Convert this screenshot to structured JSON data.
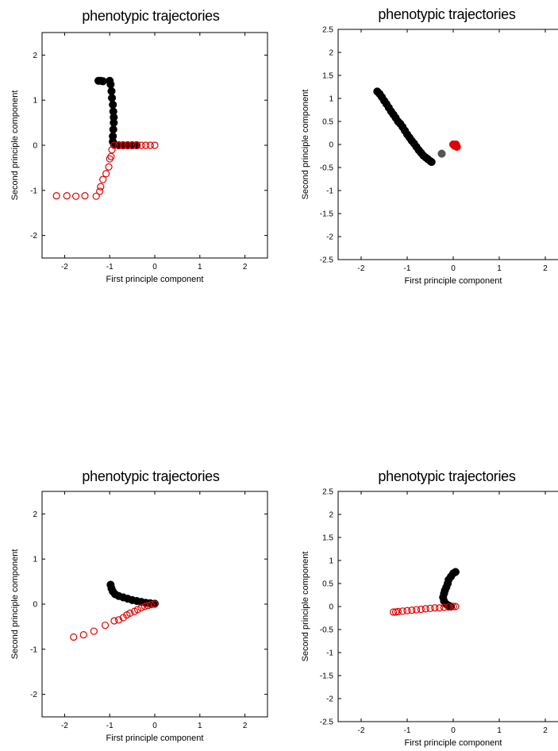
{
  "chart_data": [
    {
      "type": "scatter",
      "title": "phenotypic trajectories",
      "xlabel": "First principle component",
      "ylabel": "Second principle component",
      "xlim": [
        -2.5,
        2.5
      ],
      "ylim": [
        -2.5,
        2.5
      ],
      "xticks": [
        -2,
        -1,
        0,
        1,
        2
      ],
      "yticks": [
        -2,
        -1,
        0,
        1,
        2
      ],
      "ytick_labels": [
        "-2",
        "-1",
        "0",
        "1",
        "2"
      ],
      "series": [
        {
          "marker": "filled",
          "color": "#000000",
          "points": [
            [
              -1.25,
              1.43
            ],
            [
              -1.2,
              1.43
            ],
            [
              -1.15,
              1.42
            ],
            [
              -1.0,
              1.43
            ],
            [
              -0.98,
              1.35
            ],
            [
              -0.96,
              1.2
            ],
            [
              -0.95,
              1.05
            ],
            [
              -0.93,
              0.9
            ],
            [
              -0.92,
              0.75
            ],
            [
              -0.91,
              0.62
            ],
            [
              -0.91,
              0.5
            ],
            [
              -0.92,
              0.35
            ],
            [
              -0.93,
              0.2
            ],
            [
              -0.93,
              0.08
            ],
            [
              -0.9,
              0.01
            ],
            [
              -0.8,
              0.0
            ],
            [
              -0.7,
              0.0
            ],
            [
              -0.6,
              0.0
            ],
            [
              -0.5,
              0.0
            ],
            [
              -0.4,
              0.0
            ]
          ]
        },
        {
          "marker": "open",
          "color": "#e00000",
          "points": [
            [
              -2.18,
              -1.12
            ],
            [
              -1.95,
              -1.12
            ],
            [
              -1.75,
              -1.13
            ],
            [
              -1.55,
              -1.12
            ],
            [
              -1.3,
              -1.13
            ],
            [
              -1.22,
              -1.02
            ],
            [
              -1.2,
              -0.92
            ],
            [
              -1.15,
              -0.76
            ],
            [
              -1.08,
              -0.63
            ],
            [
              -1.02,
              -0.48
            ],
            [
              -1.0,
              -0.3
            ],
            [
              -0.97,
              -0.25
            ],
            [
              -0.95,
              -0.1
            ],
            [
              -0.9,
              0.0
            ],
            [
              -0.8,
              0.0
            ],
            [
              -0.7,
              0.0
            ],
            [
              -0.6,
              0.0
            ],
            [
              -0.5,
              0.0
            ],
            [
              -0.4,
              0.0
            ],
            [
              -0.3,
              0.0
            ],
            [
              -0.2,
              0.0
            ],
            [
              -0.1,
              0.0
            ],
            [
              0.0,
              0.0
            ]
          ]
        }
      ]
    },
    {
      "type": "scatter",
      "title": "phenotypic trajectories",
      "xlabel": "First principle component",
      "ylabel": "Second principle component",
      "xlim": [
        -2.5,
        2.5
      ],
      "ylim": [
        -2.5,
        2.5
      ],
      "xticks": [
        -2,
        -1,
        0,
        1,
        2
      ],
      "yticks": [
        -2.5,
        -2,
        -1.5,
        -1,
        -0.5,
        0,
        0.5,
        1,
        1.5,
        2,
        2.5
      ],
      "ytick_labels": [
        "-2.5",
        "-2",
        "-1.5",
        "-1",
        "-0.5",
        "0",
        "0.5",
        "1",
        "1.5",
        "2",
        "2.5"
      ],
      "series": [
        {
          "marker": "filled",
          "color": "#000000",
          "points": [
            [
              -1.65,
              1.15
            ],
            [
              -1.6,
              1.1
            ],
            [
              -1.55,
              1.03
            ],
            [
              -1.5,
              0.95
            ],
            [
              -1.45,
              0.88
            ],
            [
              -1.4,
              0.8
            ],
            [
              -1.35,
              0.72
            ],
            [
              -1.3,
              0.65
            ],
            [
              -1.25,
              0.58
            ],
            [
              -1.2,
              0.5
            ],
            [
              -1.15,
              0.45
            ],
            [
              -1.1,
              0.38
            ],
            [
              -1.05,
              0.3
            ],
            [
              -1.0,
              0.22
            ],
            [
              -0.95,
              0.15
            ],
            [
              -0.9,
              0.08
            ],
            [
              -0.85,
              0.02
            ],
            [
              -0.8,
              -0.05
            ],
            [
              -0.75,
              -0.12
            ],
            [
              -0.7,
              -0.18
            ],
            [
              -0.65,
              -0.24
            ],
            [
              -0.6,
              -0.28
            ],
            [
              -0.55,
              -0.32
            ],
            [
              -0.5,
              -0.36
            ],
            [
              -0.47,
              -0.38
            ]
          ]
        },
        {
          "marker": "filled",
          "color": "#555555",
          "points": [
            [
              -0.25,
              -0.2
            ]
          ]
        },
        {
          "marker": "filled",
          "color": "#e00000",
          "points": [
            [
              0.0,
              0.0
            ],
            [
              0.03,
              -0.03
            ],
            [
              0.06,
              0.0
            ],
            [
              0.08,
              -0.05
            ],
            [
              0.05,
              -0.02
            ]
          ]
        }
      ]
    },
    {
      "type": "scatter",
      "title": "phenotypic trajectories",
      "xlabel": "First principle component",
      "ylabel": "Second principle component",
      "xlim": [
        -2.5,
        2.5
      ],
      "ylim": [
        -2.5,
        2.5
      ],
      "xticks": [
        -2,
        -1,
        0,
        1,
        2
      ],
      "yticks": [
        -2,
        -1,
        0,
        1,
        2
      ],
      "ytick_labels": [
        "-2",
        "-1",
        "0",
        "1",
        "2"
      ],
      "series": [
        {
          "marker": "filled",
          "color": "#000000",
          "points": [
            [
              -0.98,
              0.43
            ],
            [
              -0.96,
              0.35
            ],
            [
              -0.93,
              0.28
            ],
            [
              -0.88,
              0.22
            ],
            [
              -0.8,
              0.18
            ],
            [
              -0.7,
              0.15
            ],
            [
              -0.6,
              0.12
            ],
            [
              -0.5,
              0.09
            ],
            [
              -0.4,
              0.07
            ],
            [
              -0.3,
              0.05
            ],
            [
              -0.2,
              0.03
            ],
            [
              -0.1,
              0.02
            ],
            [
              0.0,
              0.01
            ]
          ]
        },
        {
          "marker": "open",
          "color": "#e00000",
          "points": [
            [
              -1.8,
              -0.73
            ],
            [
              -1.58,
              -0.68
            ],
            [
              -1.35,
              -0.6
            ],
            [
              -1.1,
              -0.47
            ],
            [
              -0.9,
              -0.37
            ],
            [
              -0.8,
              -0.35
            ],
            [
              -0.7,
              -0.3
            ],
            [
              -0.62,
              -0.24
            ],
            [
              -0.55,
              -0.2
            ],
            [
              -0.45,
              -0.16
            ],
            [
              -0.38,
              -0.12
            ],
            [
              -0.3,
              -0.08
            ],
            [
              -0.22,
              -0.05
            ],
            [
              -0.15,
              -0.03
            ],
            [
              -0.08,
              -0.01
            ],
            [
              0.0,
              0.0
            ]
          ]
        }
      ]
    },
    {
      "type": "scatter",
      "title": "phenotypic trajectories",
      "xlabel": "First principle component",
      "ylabel": "Second principle component",
      "xlim": [
        -2.5,
        2.5
      ],
      "ylim": [
        -2.5,
        2.5
      ],
      "xticks": [
        -2,
        -1,
        0,
        1,
        2
      ],
      "yticks": [
        -2.5,
        -2,
        -1.5,
        -1,
        -0.5,
        0,
        0.5,
        1,
        1.5,
        2,
        2.5
      ],
      "ytick_labels": [
        "-2.5",
        "-2",
        "-1.5",
        "-1",
        "-0.5",
        "0",
        "0.5",
        "1",
        "1.5",
        "2",
        "2.5"
      ],
      "series": [
        {
          "marker": "filled",
          "color": "#000000",
          "points": [
            [
              0.05,
              0.75
            ],
            [
              0.0,
              0.72
            ],
            [
              -0.05,
              0.65
            ],
            [
              -0.1,
              0.58
            ],
            [
              -0.12,
              0.5
            ],
            [
              -0.15,
              0.42
            ],
            [
              -0.18,
              0.35
            ],
            [
              -0.2,
              0.28
            ],
            [
              -0.22,
              0.2
            ],
            [
              -0.2,
              0.12
            ],
            [
              -0.15,
              0.05
            ],
            [
              -0.1,
              0.02
            ],
            [
              -0.05,
              0.0
            ]
          ]
        },
        {
          "marker": "open",
          "color": "#e00000",
          "points": [
            [
              -1.3,
              -0.12
            ],
            [
              -1.25,
              -0.12
            ],
            [
              -1.2,
              -0.11
            ],
            [
              -1.1,
              -0.1
            ],
            [
              -1.0,
              -0.09
            ],
            [
              -0.9,
              -0.08
            ],
            [
              -0.8,
              -0.07
            ],
            [
              -0.7,
              -0.06
            ],
            [
              -0.6,
              -0.05
            ],
            [
              -0.5,
              -0.04
            ],
            [
              -0.4,
              -0.03
            ],
            [
              -0.3,
              -0.03
            ],
            [
              -0.2,
              -0.02
            ],
            [
              -0.1,
              -0.01
            ],
            [
              0.0,
              0.0
            ],
            [
              0.05,
              0.0
            ]
          ]
        }
      ]
    }
  ]
}
